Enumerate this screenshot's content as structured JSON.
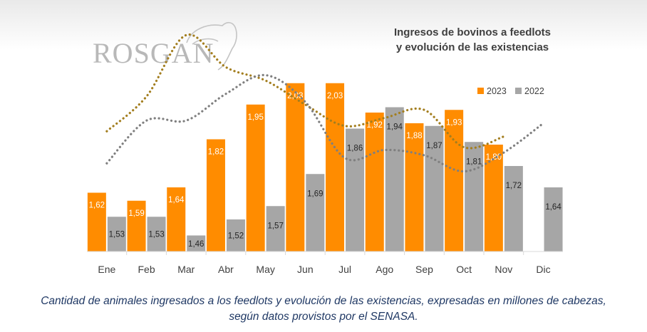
{
  "brand": {
    "logo_text": "ROSGAN",
    "logo_color": "#b8b8b8"
  },
  "colors": {
    "series_2023": "#ff8c00",
    "series_2022": "#a6a6a6",
    "trend_2023": "#a37e1f",
    "trend_2022": "#7f7f7f",
    "caption": "#1f3864"
  },
  "chart_data": {
    "type": "bar",
    "title_line1": "Ingresos de bovinos a feedlots",
    "title_line2": "y evolución de las existencias",
    "categories": [
      "Ene",
      "Feb",
      "Mar",
      "Abr",
      "May",
      "Jun",
      "Jul",
      "Ago",
      "Sep",
      "Oct",
      "Nov",
      "Dic"
    ],
    "series": [
      {
        "name": "2023",
        "values": [
          1.62,
          1.59,
          1.64,
          1.82,
          1.95,
          2.03,
          2.03,
          1.92,
          1.88,
          1.93,
          1.8,
          null
        ],
        "labels": [
          "1,62",
          "1,59",
          "1,64",
          "1,82",
          "1,95",
          "2,03",
          "2,03",
          "1,92",
          "1,88",
          "1,93",
          "1,80",
          ""
        ]
      },
      {
        "name": "2022",
        "values": [
          1.53,
          1.53,
          1.46,
          1.52,
          1.57,
          1.69,
          1.86,
          1.94,
          1.87,
          1.81,
          1.72,
          1.64
        ],
        "labels": [
          "1,53",
          "1,53",
          "1,46",
          "1,52",
          "1,57",
          "1,69",
          "1,86",
          "1,94",
          "1,87",
          "1,81",
          "1,72",
          "1,64"
        ]
      }
    ],
    "trend_lines": [
      {
        "series": "2023",
        "style": "dotted",
        "values": [
          1.85,
          1.98,
          2.21,
          2.09,
          2.04,
          1.95,
          1.87,
          1.9,
          1.93,
          1.79,
          1.83,
          null
        ]
      },
      {
        "series": "2022",
        "style": "dotted",
        "values": [
          1.73,
          1.89,
          1.89,
          1.99,
          2.06,
          1.96,
          1.75,
          1.78,
          1.76,
          1.7,
          1.77,
          1.88
        ]
      }
    ],
    "ylim": [
      1.4,
      2.08
    ],
    "legend_position": "top-right",
    "grid": false
  },
  "caption": {
    "line1": "Cantidad de animales ingresados a los feedlots y evolución de las existencias, expresadas en millones de cabezas,",
    "line2": "según datos provistos por el SENASA."
  }
}
